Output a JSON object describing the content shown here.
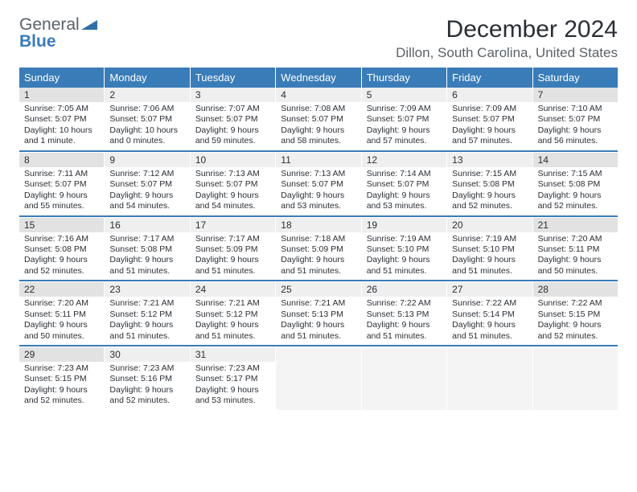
{
  "logo": {
    "line1": "General",
    "line2": "Blue"
  },
  "title": "December 2024",
  "location": "Dillon, South Carolina, United States",
  "colors": {
    "header_bg": "#3a7cb8",
    "daynum_weekend_bg": "#e2e2e2",
    "daynum_weekday_bg": "#efefef",
    "border": "#3a7cb8"
  },
  "dayNames": [
    "Sunday",
    "Monday",
    "Tuesday",
    "Wednesday",
    "Thursday",
    "Friday",
    "Saturday"
  ],
  "weeks": [
    [
      {
        "n": "1",
        "sr": "7:05 AM",
        "ss": "5:07 PM",
        "dl": "10 hours and 1 minute."
      },
      {
        "n": "2",
        "sr": "7:06 AM",
        "ss": "5:07 PM",
        "dl": "10 hours and 0 minutes."
      },
      {
        "n": "3",
        "sr": "7:07 AM",
        "ss": "5:07 PM",
        "dl": "9 hours and 59 minutes."
      },
      {
        "n": "4",
        "sr": "7:08 AM",
        "ss": "5:07 PM",
        "dl": "9 hours and 58 minutes."
      },
      {
        "n": "5",
        "sr": "7:09 AM",
        "ss": "5:07 PM",
        "dl": "9 hours and 57 minutes."
      },
      {
        "n": "6",
        "sr": "7:09 AM",
        "ss": "5:07 PM",
        "dl": "9 hours and 57 minutes."
      },
      {
        "n": "7",
        "sr": "7:10 AM",
        "ss": "5:07 PM",
        "dl": "9 hours and 56 minutes."
      }
    ],
    [
      {
        "n": "8",
        "sr": "7:11 AM",
        "ss": "5:07 PM",
        "dl": "9 hours and 55 minutes."
      },
      {
        "n": "9",
        "sr": "7:12 AM",
        "ss": "5:07 PM",
        "dl": "9 hours and 54 minutes."
      },
      {
        "n": "10",
        "sr": "7:13 AM",
        "ss": "5:07 PM",
        "dl": "9 hours and 54 minutes."
      },
      {
        "n": "11",
        "sr": "7:13 AM",
        "ss": "5:07 PM",
        "dl": "9 hours and 53 minutes."
      },
      {
        "n": "12",
        "sr": "7:14 AM",
        "ss": "5:07 PM",
        "dl": "9 hours and 53 minutes."
      },
      {
        "n": "13",
        "sr": "7:15 AM",
        "ss": "5:08 PM",
        "dl": "9 hours and 52 minutes."
      },
      {
        "n": "14",
        "sr": "7:15 AM",
        "ss": "5:08 PM",
        "dl": "9 hours and 52 minutes."
      }
    ],
    [
      {
        "n": "15",
        "sr": "7:16 AM",
        "ss": "5:08 PM",
        "dl": "9 hours and 52 minutes."
      },
      {
        "n": "16",
        "sr": "7:17 AM",
        "ss": "5:08 PM",
        "dl": "9 hours and 51 minutes."
      },
      {
        "n": "17",
        "sr": "7:17 AM",
        "ss": "5:09 PM",
        "dl": "9 hours and 51 minutes."
      },
      {
        "n": "18",
        "sr": "7:18 AM",
        "ss": "5:09 PM",
        "dl": "9 hours and 51 minutes."
      },
      {
        "n": "19",
        "sr": "7:19 AM",
        "ss": "5:10 PM",
        "dl": "9 hours and 51 minutes."
      },
      {
        "n": "20",
        "sr": "7:19 AM",
        "ss": "5:10 PM",
        "dl": "9 hours and 51 minutes."
      },
      {
        "n": "21",
        "sr": "7:20 AM",
        "ss": "5:11 PM",
        "dl": "9 hours and 50 minutes."
      }
    ],
    [
      {
        "n": "22",
        "sr": "7:20 AM",
        "ss": "5:11 PM",
        "dl": "9 hours and 50 minutes."
      },
      {
        "n": "23",
        "sr": "7:21 AM",
        "ss": "5:12 PM",
        "dl": "9 hours and 51 minutes."
      },
      {
        "n": "24",
        "sr": "7:21 AM",
        "ss": "5:12 PM",
        "dl": "9 hours and 51 minutes."
      },
      {
        "n": "25",
        "sr": "7:21 AM",
        "ss": "5:13 PM",
        "dl": "9 hours and 51 minutes."
      },
      {
        "n": "26",
        "sr": "7:22 AM",
        "ss": "5:13 PM",
        "dl": "9 hours and 51 minutes."
      },
      {
        "n": "27",
        "sr": "7:22 AM",
        "ss": "5:14 PM",
        "dl": "9 hours and 51 minutes."
      },
      {
        "n": "28",
        "sr": "7:22 AM",
        "ss": "5:15 PM",
        "dl": "9 hours and 52 minutes."
      }
    ],
    [
      {
        "n": "29",
        "sr": "7:23 AM",
        "ss": "5:15 PM",
        "dl": "9 hours and 52 minutes."
      },
      {
        "n": "30",
        "sr": "7:23 AM",
        "ss": "5:16 PM",
        "dl": "9 hours and 52 minutes."
      },
      {
        "n": "31",
        "sr": "7:23 AM",
        "ss": "5:17 PM",
        "dl": "9 hours and 53 minutes."
      },
      null,
      null,
      null,
      null
    ]
  ],
  "labels": {
    "sunrise": "Sunrise:",
    "sunset": "Sunset:",
    "daylight": "Daylight:"
  }
}
